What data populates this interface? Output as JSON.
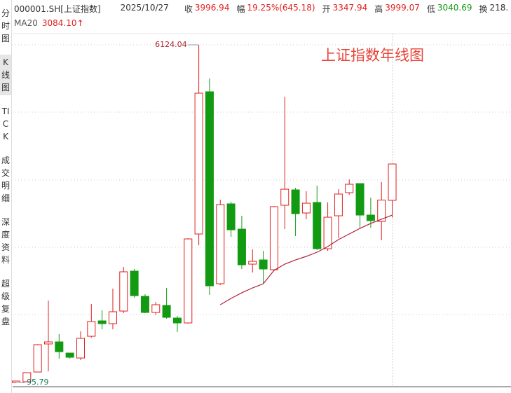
{
  "header": {
    "code": "000001.SH[上证指数]",
    "date": "2025/10/27",
    "items": [
      {
        "label": "收",
        "value": "3996.94",
        "color": "#e02020"
      },
      {
        "label": "幅",
        "value": "19.25%(645.18)",
        "color": "#e02020"
      },
      {
        "label": "开",
        "value": "3347.94",
        "color": "#e02020"
      },
      {
        "label": "高",
        "value": "3999.07",
        "color": "#e02020"
      },
      {
        "label": "低",
        "value": "3040.69",
        "color": "#129a12"
      },
      {
        "label": "换",
        "value": "218.",
        "color": "#333333"
      }
    ]
  },
  "sidebar": [
    "分时图",
    "K线图",
    "TICK",
    "成交明细",
    "深度资料",
    "超级复盘"
  ],
  "selected_tab": 1,
  "chart_data": {
    "type": "candlestick",
    "annotation": "上证指数年线图",
    "up_color": "#e02020",
    "down_color": "#129a12",
    "grid": true,
    "open": [
      96,
      108,
      283,
      784,
      821,
      621,
      533,
      921,
      1196,
      1146,
      1371,
      2084,
      1634,
      1346,
      1472,
      1246,
      1159,
      2747,
      5286,
      1859,
      3285,
      2834,
      2209,
      2284,
      2109,
      3260,
      3535,
      3122,
      3310,
      2484,
      3072,
      3485,
      3647,
      3085,
      2972,
      3347.94
    ],
    "close": [
      121,
      271,
      771,
      821,
      646,
      546,
      884,
      1184,
      1146,
      1359,
      2072,
      1646,
      1346,
      1484,
      1259,
      1159,
      2659,
      5261,
      1822,
      3272,
      2822,
      2197,
      2259,
      2122,
      3235,
      3547,
      3110,
      3297,
      2484,
      3047,
      3460,
      3635,
      3085,
      2985,
      3352,
      3996.94
    ],
    "high": [
      121,
      271,
      780,
      1559,
      959,
      621,
      1009,
      1496,
      1384,
      1772,
      2159,
      2122,
      1672,
      1534,
      1784,
      1284,
      2672,
      6124.04,
      5523,
      3360,
      3322,
      3072,
      2472,
      2447,
      3247,
      5198,
      3572,
      3510,
      3610,
      3310,
      3547,
      3722,
      3647,
      3397,
      3674,
      3999.07
    ],
    "low": [
      95.79,
      108,
      283,
      296,
      521,
      521,
      496,
      896,
      1046,
      1046,
      1334,
      1609,
      1334,
      1296,
      1234,
      996,
      1146,
      2547,
      1659,
      1834,
      2697,
      2122,
      2059,
      1872,
      2084,
      2835,
      2710,
      3010,
      2459,
      2447,
      2672,
      3447,
      2859,
      2859,
      2635,
      3040.69
    ],
    "ma": {
      "name": "MA20",
      "color": "#b0203a",
      "last_label": "3084.10↑",
      "values": [
        null,
        null,
        null,
        null,
        null,
        null,
        null,
        null,
        null,
        null,
        null,
        null,
        null,
        null,
        null,
        null,
        null,
        null,
        null,
        1484,
        1597,
        1697,
        1784,
        1859,
        2097,
        2209,
        2284,
        2347,
        2422,
        2522,
        2647,
        2747,
        2847,
        2935,
        3010,
        3084.1
      ]
    }
  }
}
